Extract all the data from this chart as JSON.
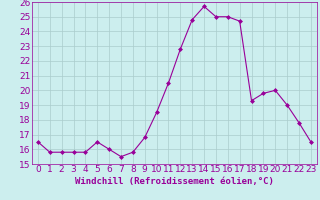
{
  "x": [
    0,
    1,
    2,
    3,
    4,
    5,
    6,
    7,
    8,
    9,
    10,
    11,
    12,
    13,
    14,
    15,
    16,
    17,
    18,
    19,
    20,
    21,
    22,
    23
  ],
  "y": [
    16.5,
    15.8,
    15.8,
    15.8,
    15.8,
    16.5,
    16.0,
    15.5,
    15.8,
    16.8,
    18.5,
    20.5,
    22.8,
    24.8,
    25.7,
    25.0,
    25.0,
    24.7,
    19.3,
    19.8,
    20.0,
    19.0,
    17.8,
    16.5
  ],
  "line_color": "#990099",
  "marker": "D",
  "marker_size": 2,
  "background_color": "#cceeee",
  "grid_color": "#aacccc",
  "xlabel": "Windchill (Refroidissement éolien,°C)",
  "xlim": [
    -0.5,
    23.5
  ],
  "ylim": [
    15,
    26
  ],
  "yticks": [
    15,
    16,
    17,
    18,
    19,
    20,
    21,
    22,
    23,
    24,
    25,
    26
  ],
  "xticks": [
    0,
    1,
    2,
    3,
    4,
    5,
    6,
    7,
    8,
    9,
    10,
    11,
    12,
    13,
    14,
    15,
    16,
    17,
    18,
    19,
    20,
    21,
    22,
    23
  ],
  "xlabel_fontsize": 6.5,
  "tick_fontsize": 6.5,
  "label_color": "#990099",
  "tick_color": "#990099"
}
